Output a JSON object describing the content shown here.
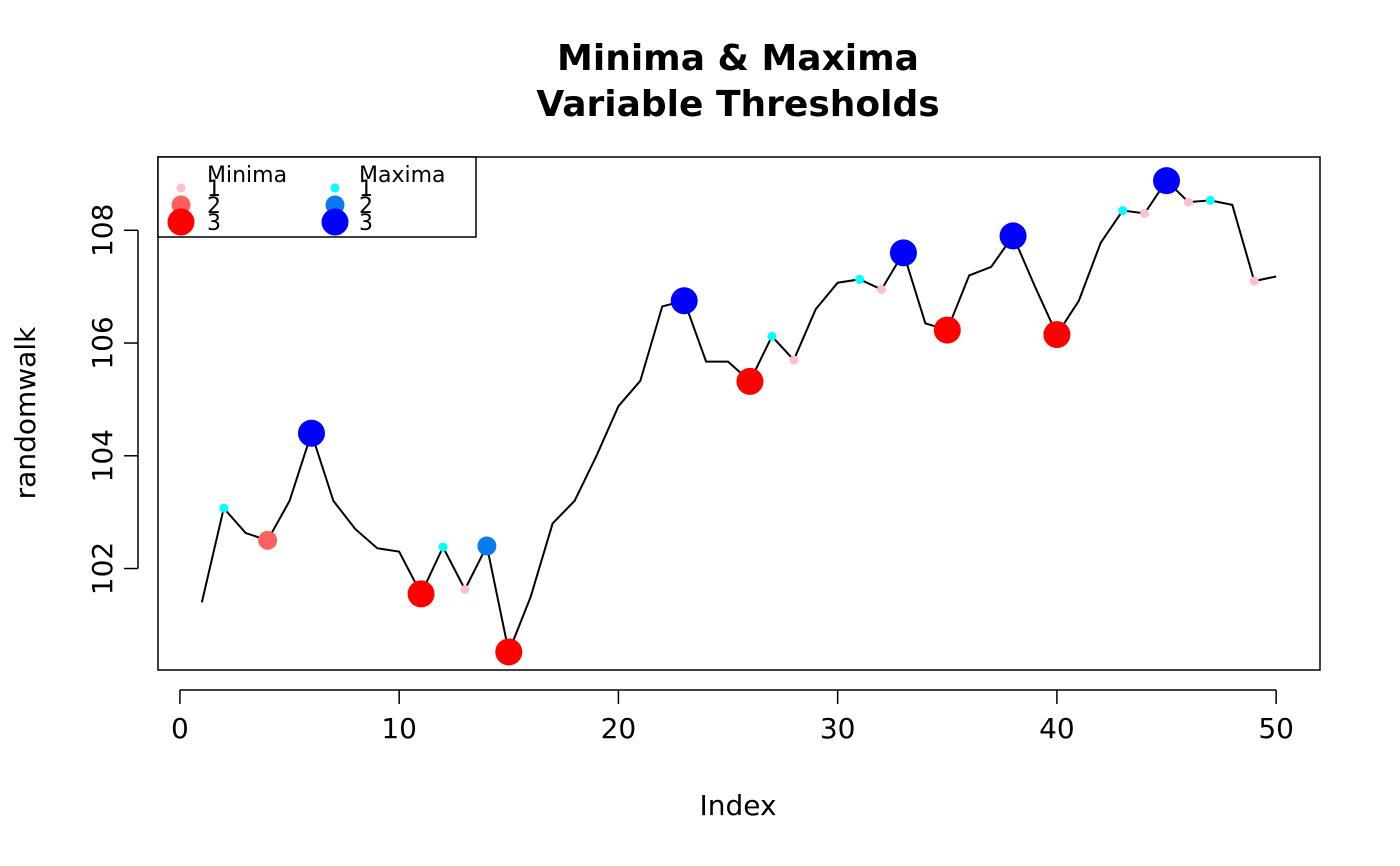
{
  "chart_data": {
    "type": "line",
    "title": "Minima & Maxima",
    "subtitle": "Variable Thresholds",
    "xlabel": "Index",
    "ylabel": "randomwalk",
    "xlim": [
      -1,
      52
    ],
    "ylim": [
      100.2,
      109.3
    ],
    "x_ticks": [
      0,
      10,
      20,
      30,
      40,
      50
    ],
    "y_ticks": [
      102,
      104,
      106,
      108
    ],
    "series": [
      {
        "x": [
          1,
          2,
          3,
          4,
          5,
          6,
          7,
          8,
          9,
          10,
          11,
          12,
          13,
          14,
          15,
          16,
          17,
          18,
          19,
          20,
          21,
          22,
          23,
          24,
          25,
          26,
          27,
          28,
          29,
          30,
          31,
          32,
          33,
          34,
          35,
          36,
          37,
          38,
          39,
          40,
          41,
          42,
          43,
          44,
          45,
          46,
          47,
          48,
          49,
          50
        ],
        "values": [
          101.4,
          103.07,
          102.63,
          102.5,
          103.2,
          104.4,
          103.2,
          102.7,
          102.36,
          102.3,
          101.55,
          102.38,
          101.63,
          102.4,
          100.52,
          101.5,
          102.8,
          103.2,
          104.0,
          104.88,
          105.33,
          106.65,
          106.75,
          105.67,
          105.67,
          105.32,
          106.12,
          105.7,
          106.6,
          107.07,
          107.13,
          106.95,
          107.6,
          106.35,
          106.23,
          107.2,
          107.35,
          107.9,
          107.0,
          106.15,
          106.75,
          107.78,
          108.35,
          108.3,
          108.88,
          108.5,
          108.53,
          108.45,
          107.1,
          107.18
        ]
      }
    ],
    "minima": [
      {
        "x": 4,
        "y": 102.5,
        "level": 2
      },
      {
        "x": 11,
        "y": 101.55,
        "level": 3
      },
      {
        "x": 13,
        "y": 101.63,
        "level": 1
      },
      {
        "x": 15,
        "y": 100.52,
        "level": 3
      },
      {
        "x": 26,
        "y": 105.32,
        "level": 3
      },
      {
        "x": 28,
        "y": 105.7,
        "level": 1
      },
      {
        "x": 32,
        "y": 106.95,
        "level": 1
      },
      {
        "x": 35,
        "y": 106.23,
        "level": 3
      },
      {
        "x": 40,
        "y": 106.15,
        "level": 3
      },
      {
        "x": 44,
        "y": 108.3,
        "level": 1
      },
      {
        "x": 46,
        "y": 108.5,
        "level": 1
      },
      {
        "x": 49,
        "y": 107.1,
        "level": 1
      }
    ],
    "maxima": [
      {
        "x": 2,
        "y": 103.07,
        "level": 1
      },
      {
        "x": 6,
        "y": 104.4,
        "level": 3
      },
      {
        "x": 12,
        "y": 102.38,
        "level": 1
      },
      {
        "x": 14,
        "y": 102.4,
        "level": 2
      },
      {
        "x": 23,
        "y": 106.75,
        "level": 3
      },
      {
        "x": 27,
        "y": 106.12,
        "level": 1
      },
      {
        "x": 31,
        "y": 107.13,
        "level": 1
      },
      {
        "x": 33,
        "y": 107.6,
        "level": 3
      },
      {
        "x": 38,
        "y": 107.9,
        "level": 3
      },
      {
        "x": 43,
        "y": 108.35,
        "level": 1
      },
      {
        "x": 45,
        "y": 108.88,
        "level": 3
      },
      {
        "x": 47,
        "y": 108.53,
        "level": 1
      }
    ],
    "legend": {
      "placement": "top-left",
      "groups": [
        {
          "title": "Minima",
          "levels": [
            "1",
            "2",
            "3"
          ],
          "colors": [
            "#FFC0CB",
            "#FF6060",
            "#FF0000"
          ]
        },
        {
          "title": "Maxima",
          "levels": [
            "1",
            "2",
            "3"
          ],
          "colors": [
            "#00FFFF",
            "#0A7AF0",
            "#0000FF"
          ]
        }
      ]
    },
    "grid": false,
    "line_color": "#000000"
  }
}
